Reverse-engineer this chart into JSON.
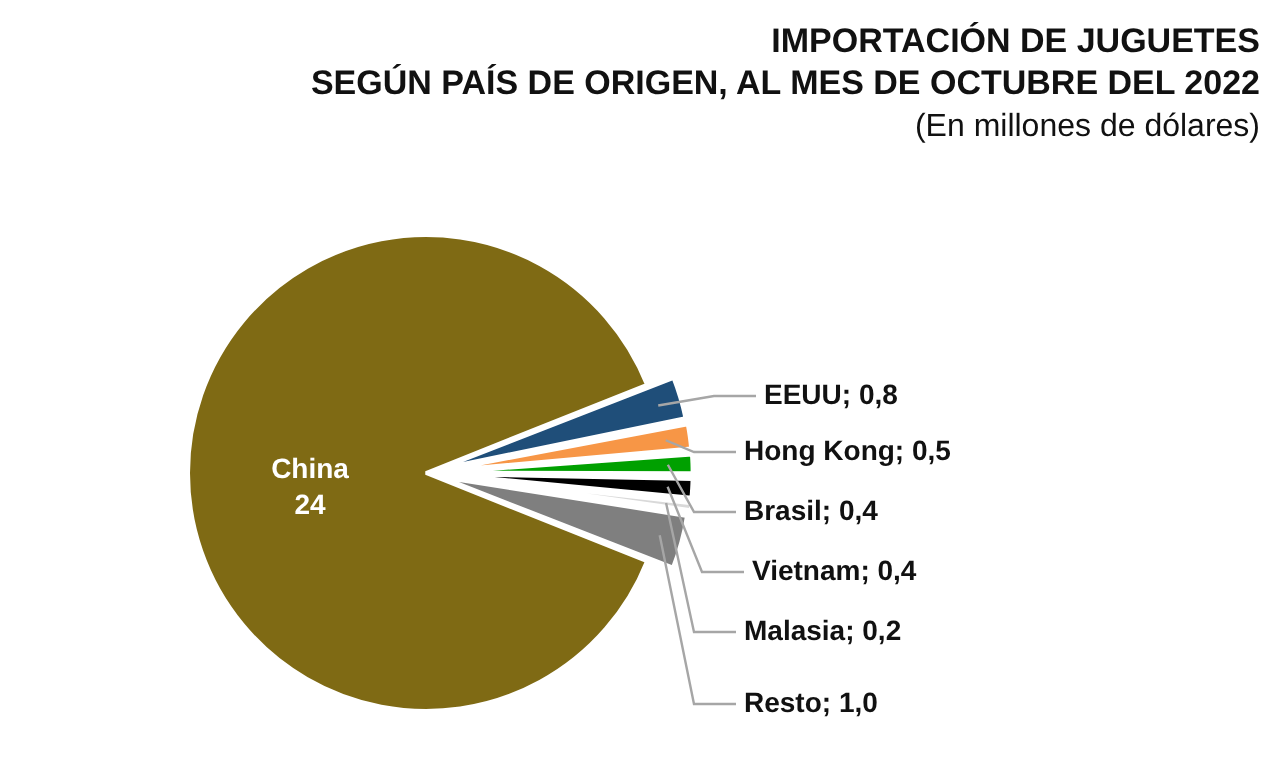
{
  "chart_data": {
    "type": "pie",
    "title": "IMPORTACIÓN DE JUGUETES\nSEGÚN PAÍS DE ORIGEN, AL MES DE OCTUBRE DEL 2022",
    "subtitle": "(En millones de dólares)",
    "categories": [
      "EEUU",
      "Hong Kong",
      "Brasil",
      "Vietnam",
      "Malasia",
      "Resto",
      "China"
    ],
    "values": [
      0.8,
      0.5,
      0.4,
      0.4,
      0.2,
      1.0,
      24
    ],
    "value_labels": [
      "0,8",
      "0,5",
      "0,4",
      "0,4",
      "0,2",
      "1,0",
      "24"
    ],
    "colors": [
      "#1f4e79",
      "#f79646",
      "#00a000",
      "#000000",
      "#d9d9d9",
      "#7f7f7f",
      "#7f6a14"
    ],
    "legend": false
  }
}
